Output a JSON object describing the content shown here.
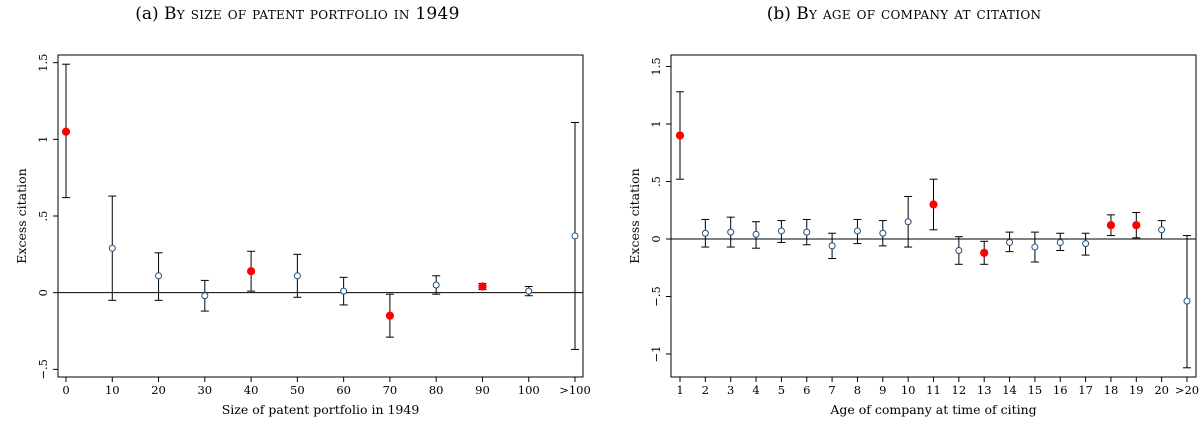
{
  "chart_data": [
    {
      "type": "scatter",
      "panel_label": "(a)",
      "title": "By size of patent portfolio in 1949",
      "xlabel": "Size of patent portfolio in 1949",
      "ylabel": "Excess citation",
      "categories": [
        "0",
        "10",
        "20",
        "30",
        "40",
        "50",
        "60",
        "70",
        "80",
        "90",
        "100",
        ">100"
      ],
      "values": [
        1.05,
        0.29,
        0.11,
        -0.02,
        0.14,
        0.11,
        0.01,
        -0.15,
        0.05,
        0.04,
        0.01,
        0.37
      ],
      "ci_low": [
        0.62,
        -0.05,
        -0.05,
        -0.12,
        0.01,
        -0.03,
        -0.08,
        -0.29,
        -0.01,
        0.02,
        -0.02,
        -0.37
      ],
      "ci_high": [
        1.49,
        0.63,
        0.26,
        0.08,
        0.27,
        0.25,
        0.1,
        -0.01,
        0.11,
        0.06,
        0.04,
        1.11
      ],
      "significant": [
        true,
        false,
        false,
        false,
        true,
        false,
        false,
        true,
        false,
        true,
        false,
        false
      ],
      "ylim": [
        -0.55,
        1.55
      ],
      "yticks": [
        -0.5,
        0,
        0.5,
        1,
        1.5
      ],
      "ytick_labels": [
        "−.5",
        "0",
        ".5",
        "1",
        "1.5"
      ],
      "reference_line": 0,
      "colors": {
        "significant": "#ff0000",
        "not_significant": "#1f4e79"
      }
    },
    {
      "type": "scatter",
      "panel_label": "(b)",
      "title": "By age of company at citation",
      "xlabel": "Age of company at time of citing",
      "ylabel": "Excess citation",
      "categories": [
        "1",
        "2",
        "3",
        "4",
        "5",
        "6",
        "7",
        "8",
        "9",
        "10",
        "11",
        "12",
        "13",
        "14",
        "15",
        "16",
        "17",
        "18",
        "19",
        "20",
        ">20"
      ],
      "values": [
        0.9,
        0.05,
        0.06,
        0.04,
        0.07,
        0.06,
        -0.06,
        0.07,
        0.05,
        0.15,
        0.3,
        -0.1,
        -0.12,
        -0.03,
        -0.07,
        -0.03,
        -0.04,
        0.12,
        0.12,
        0.08,
        -0.54
      ],
      "ci_low": [
        0.52,
        -0.07,
        -0.07,
        -0.08,
        -0.03,
        -0.05,
        -0.17,
        -0.04,
        -0.06,
        -0.07,
        0.08,
        -0.22,
        -0.22,
        -0.11,
        -0.2,
        -0.1,
        -0.14,
        0.03,
        0.01,
        0.0,
        -1.12
      ],
      "ci_high": [
        1.28,
        0.17,
        0.19,
        0.15,
        0.16,
        0.17,
        0.05,
        0.17,
        0.16,
        0.37,
        0.52,
        0.02,
        -0.02,
        0.06,
        0.06,
        0.05,
        0.05,
        0.21,
        0.23,
        0.16,
        0.03
      ],
      "significant": [
        true,
        false,
        false,
        false,
        false,
        false,
        false,
        false,
        false,
        false,
        true,
        false,
        true,
        false,
        false,
        false,
        false,
        true,
        true,
        false,
        false
      ],
      "ylim": [
        -1.2,
        1.6
      ],
      "yticks": [
        -1,
        -0.5,
        0,
        0.5,
        1,
        1.5
      ],
      "ytick_labels": [
        "−1",
        "−.5",
        "0",
        ".5",
        "1",
        "1.5"
      ],
      "reference_line": 0,
      "colors": {
        "significant": "#ff0000",
        "not_significant": "#1f4e79"
      }
    }
  ]
}
